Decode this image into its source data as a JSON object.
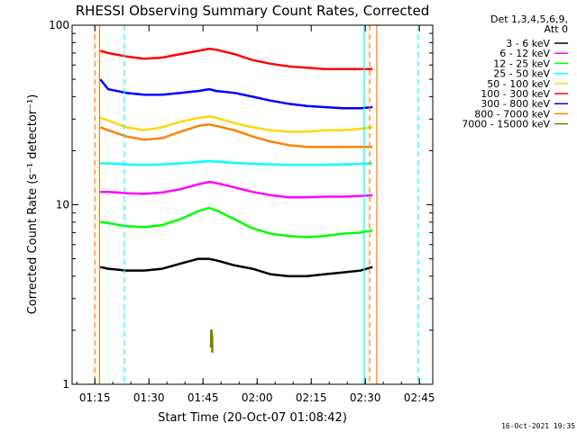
{
  "chart_data": {
    "type": "line",
    "title": "RHESSI Observing Summary Count Rates, Corrected",
    "xlabel": "Start Time (20-Oct-07 01:08:42)",
    "ylabel": "Corrected Count Rate (s⁻¹ detector⁻¹)",
    "x_axis": {
      "unit": "minutes since 01:08:42",
      "range": [
        0,
        100
      ],
      "ticks": [
        {
          "label": "01:15",
          "x": 6.3
        },
        {
          "label": "01:30",
          "x": 21.3
        },
        {
          "label": "01:45",
          "x": 36.3
        },
        {
          "label": "02:00",
          "x": 51.3
        },
        {
          "label": "02:15",
          "x": 66.3
        },
        {
          "label": "02:30",
          "x": 81.3
        },
        {
          "label": "02:45",
          "x": 96.3
        }
      ]
    },
    "y_axis": {
      "scale": "log",
      "range": [
        1,
        100
      ],
      "ticks": [
        {
          "label": "1",
          "y": 1
        },
        {
          "label": "10",
          "y": 10
        },
        {
          "label": "100",
          "y": 100
        }
      ]
    },
    "legend": {
      "placement": "top-right",
      "header": [
        "Det 1,3,4,5,6,9,",
        "Att 0"
      ]
    },
    "series": [
      {
        "name": "3 - 6 keV",
        "color": "#000000",
        "x": [
          7.8,
          10,
          15,
          20,
          25,
          30,
          35,
          38,
          40,
          45,
          50,
          55,
          60,
          65,
          70,
          75,
          80,
          83.3
        ],
        "y": [
          4.5,
          4.4,
          4.3,
          4.3,
          4.4,
          4.7,
          5.0,
          5.0,
          4.9,
          4.6,
          4.4,
          4.1,
          4.0,
          4.0,
          4.1,
          4.2,
          4.3,
          4.5
        ]
      },
      {
        "name": "6 - 12 keV",
        "color": "#ff00ff",
        "x": [
          7.8,
          10,
          15,
          20,
          25,
          30,
          35,
          38,
          40,
          45,
          50,
          55,
          60,
          65,
          70,
          75,
          80,
          83.3
        ],
        "y": [
          11.8,
          11.8,
          11.6,
          11.5,
          11.7,
          12.2,
          13.0,
          13.4,
          13.2,
          12.5,
          11.8,
          11.3,
          11.0,
          11.0,
          11.1,
          11.1,
          11.2,
          11.3
        ]
      },
      {
        "name": "12 - 25 keV",
        "color": "#00ff00",
        "x": [
          7.8,
          10,
          15,
          20,
          25,
          30,
          35,
          38,
          40,
          45,
          50,
          55,
          60,
          65,
          70,
          75,
          80,
          83.3
        ],
        "y": [
          8.0,
          7.9,
          7.6,
          7.5,
          7.7,
          8.3,
          9.2,
          9.6,
          9.3,
          8.3,
          7.4,
          6.9,
          6.7,
          6.6,
          6.7,
          6.9,
          7.0,
          7.2
        ]
      },
      {
        "name": "25 - 50 keV",
        "color": "#00ffff",
        "x": [
          7.8,
          10,
          15,
          20,
          25,
          30,
          35,
          38,
          40,
          45,
          50,
          55,
          60,
          65,
          70,
          75,
          80,
          83.3
        ],
        "y": [
          17.0,
          17.0,
          16.8,
          16.7,
          16.8,
          17.0,
          17.3,
          17.5,
          17.4,
          17.1,
          16.9,
          16.8,
          16.7,
          16.7,
          16.7,
          16.8,
          16.9,
          17.0
        ]
      },
      {
        "name": "50 - 100 keV",
        "color": "#ffd700",
        "x": [
          7.8,
          10,
          15,
          20,
          25,
          30,
          35,
          38,
          40,
          45,
          50,
          55,
          60,
          65,
          70,
          75,
          80,
          83.3
        ],
        "y": [
          30.5,
          29.5,
          27.0,
          26.0,
          27.0,
          29.0,
          30.5,
          31.0,
          30.5,
          28.5,
          27.0,
          26.0,
          25.5,
          25.5,
          26.0,
          26.0,
          26.5,
          27.0
        ]
      },
      {
        "name": "100 - 300 keV",
        "color": "#ff0000",
        "x": [
          7.8,
          10,
          15,
          20,
          25,
          30,
          35,
          38,
          40,
          45,
          50,
          55,
          60,
          65,
          70,
          75,
          80,
          83.3
        ],
        "y": [
          72,
          70,
          67,
          65,
          66,
          69,
          72,
          74,
          73,
          69,
          64,
          61,
          59,
          58,
          57,
          57,
          57,
          57
        ]
      },
      {
        "name": "300 - 800 keV",
        "color": "#0000ff",
        "x": [
          7.8,
          10,
          15,
          20,
          25,
          30,
          35,
          38,
          40,
          45,
          50,
          55,
          60,
          65,
          70,
          75,
          80,
          83.3
        ],
        "y": [
          50,
          44,
          42,
          41,
          41,
          42,
          43,
          44,
          43,
          42,
          40,
          38,
          36.5,
          35.5,
          35,
          34.5,
          34.5,
          35
        ]
      },
      {
        "name": "800 - 7000 keV",
        "color": "#ff8000",
        "x": [
          7.8,
          10,
          15,
          20,
          25,
          30,
          35,
          38,
          40,
          45,
          50,
          55,
          60,
          65,
          70,
          75,
          80,
          83.3
        ],
        "y": [
          27.0,
          26.0,
          24.0,
          23.0,
          23.5,
          25.5,
          27.5,
          28.0,
          27.5,
          26.0,
          24.0,
          22.5,
          21.5,
          21.0,
          21.0,
          21.0,
          21.0,
          21.0
        ]
      },
      {
        "name": "7000 - 15000 keV",
        "color": "#808000",
        "x": [
          38.5,
          38.6,
          38.8,
          38.9
        ],
        "y": [
          1.6,
          2.0,
          1.9,
          1.5
        ]
      }
    ],
    "vertical_markers": [
      {
        "x": 6.3,
        "color": "#ff8000",
        "style": "dashed"
      },
      {
        "x": 14.5,
        "color": "#00ffff",
        "style": "dashed"
      },
      {
        "x": 7.6,
        "color": "#ff8000",
        "style": "solid"
      },
      {
        "x": 81.0,
        "color": "#00ffff",
        "style": "solid"
      },
      {
        "x": 82.5,
        "color": "#ff8000",
        "style": "dashed"
      },
      {
        "x": 84.5,
        "color": "#ff8000",
        "style": "solid"
      },
      {
        "x": 96.0,
        "color": "#00ffff",
        "style": "dashed"
      }
    ],
    "footer": "16-Oct-2021 19:35"
  }
}
